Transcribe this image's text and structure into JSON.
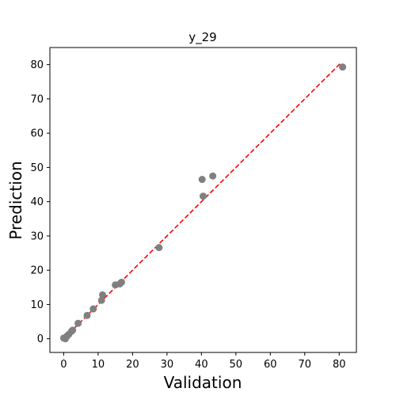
{
  "chart_data": {
    "type": "scatter",
    "title": "y_29",
    "xlabel": "Validation",
    "ylabel": "Prediction",
    "xlim": [
      -4,
      85
    ],
    "ylim": [
      -4,
      85
    ],
    "xticks": [
      0,
      10,
      20,
      30,
      40,
      50,
      60,
      70,
      80
    ],
    "yticks": [
      0,
      10,
      20,
      30,
      40,
      50,
      60,
      70,
      80
    ],
    "grid": false,
    "point_color": "#808080",
    "reference_line": {
      "style": "dashed",
      "color": "#ff0000",
      "from": [
        0,
        0
      ],
      "to": [
        80.5,
        80.5
      ]
    },
    "points": [
      {
        "x": 0.0,
        "y": 0.2
      },
      {
        "x": 0.5,
        "y": 0.0
      },
      {
        "x": 1.0,
        "y": 0.8
      },
      {
        "x": 1.5,
        "y": 1.3
      },
      {
        "x": 2.3,
        "y": 2.2
      },
      {
        "x": 2.6,
        "y": 2.5
      },
      {
        "x": 4.2,
        "y": 4.5
      },
      {
        "x": 6.8,
        "y": 6.8
      },
      {
        "x": 8.6,
        "y": 8.7
      },
      {
        "x": 11.0,
        "y": 11.2
      },
      {
        "x": 11.3,
        "y": 12.8
      },
      {
        "x": 15.0,
        "y": 15.7
      },
      {
        "x": 16.3,
        "y": 16.0
      },
      {
        "x": 16.8,
        "y": 16.5
      },
      {
        "x": 27.7,
        "y": 26.6
      },
      {
        "x": 40.2,
        "y": 46.5
      },
      {
        "x": 40.5,
        "y": 41.6
      },
      {
        "x": 43.3,
        "y": 47.5
      },
      {
        "x": 81.0,
        "y": 79.3
      }
    ]
  }
}
